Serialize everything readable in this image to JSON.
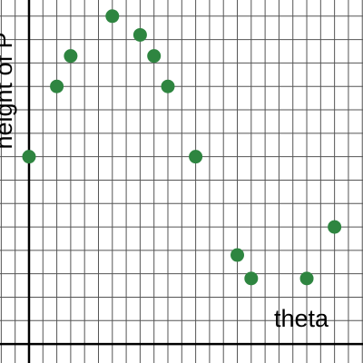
{
  "chart_data": {
    "type": "scatter",
    "x_label": "theta",
    "y_label": "height of P",
    "x": [
      0,
      2,
      3,
      6,
      8,
      9,
      10,
      12,
      15,
      16,
      20,
      22
    ],
    "series": [
      {
        "color": "#2e8540",
        "values": [
          8,
          11,
          12.3,
          14,
          13.2,
          12.3,
          11,
          8,
          3.8,
          2.8,
          2.8,
          5
        ]
      }
    ],
    "xlim": [
      -2.09,
      24.05
    ],
    "ylim": [
      -0.81,
      14.69
    ],
    "xticks": [
      -2,
      -1,
      0,
      1,
      2,
      3,
      4,
      5,
      6,
      7,
      8,
      9,
      10,
      11,
      12,
      13,
      14,
      15,
      16,
      17,
      18,
      19,
      20,
      21,
      22,
      23,
      24
    ],
    "yticks": [
      0,
      1,
      2,
      3,
      4,
      5,
      6,
      7,
      8,
      9,
      10,
      11,
      12,
      13,
      14
    ],
    "grid": true
  }
}
